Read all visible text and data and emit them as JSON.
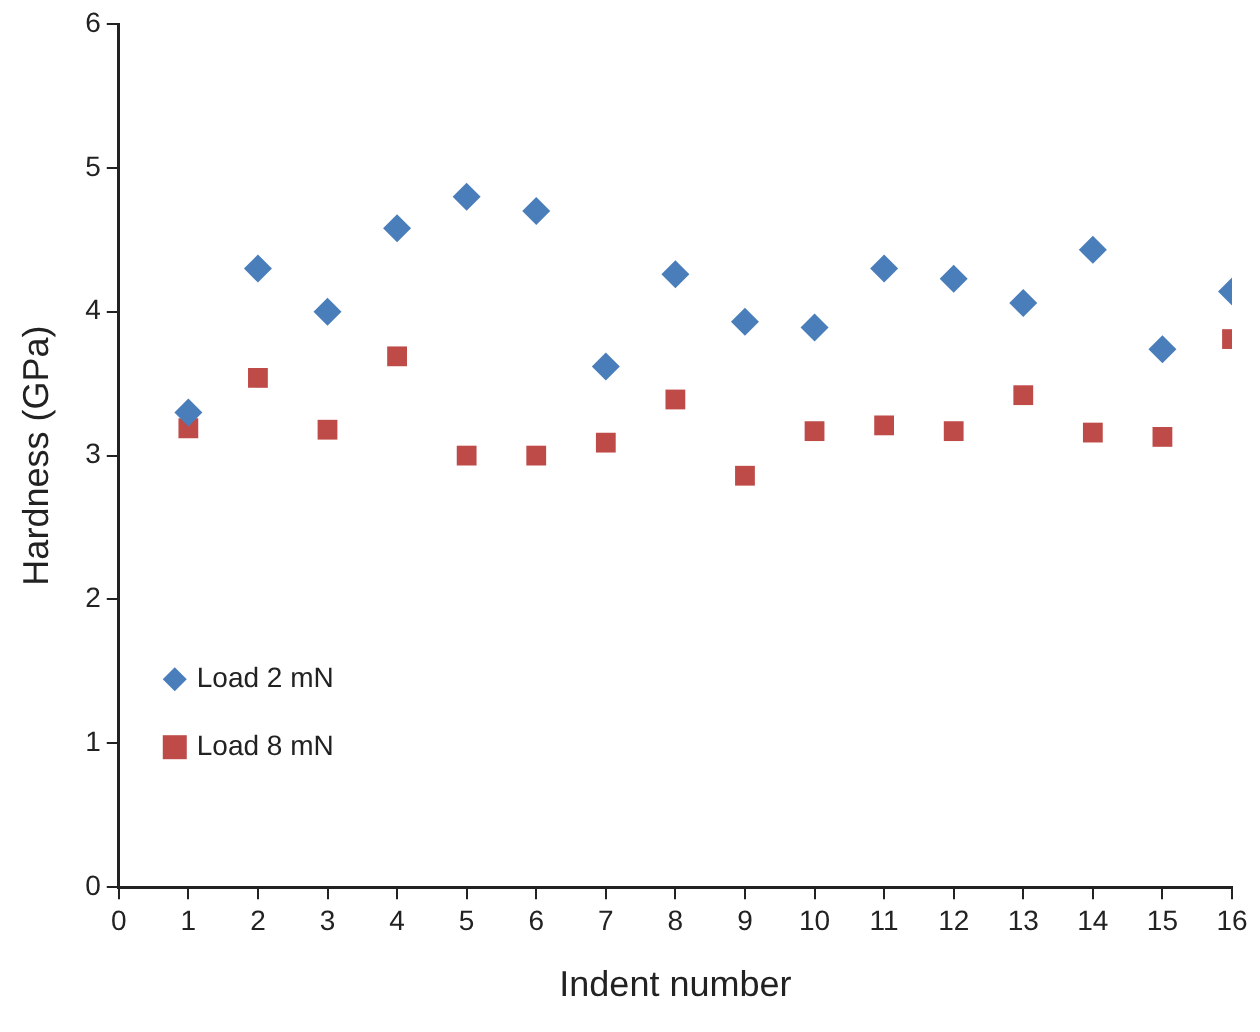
{
  "chart_data": {
    "type": "scatter",
    "xlabel": "Indent number",
    "ylabel": "Hardness (GPa)",
    "x": [
      1,
      2,
      3,
      4,
      5,
      6,
      7,
      8,
      9,
      10,
      11,
      12,
      13,
      14,
      15,
      16
    ],
    "series": [
      {
        "name": "Load 2 mN",
        "color": "#4a7ebb",
        "marker": "diamond",
        "values": [
          3.3,
          4.3,
          4.0,
          4.58,
          4.8,
          4.7,
          3.62,
          4.26,
          3.93,
          3.89,
          4.3,
          4.23,
          4.06,
          4.43,
          3.74,
          4.14
        ]
      },
      {
        "name": "Load 8 mN",
        "color": "#be4b48",
        "marker": "square",
        "values": [
          3.19,
          3.54,
          3.18,
          3.69,
          3.0,
          3.0,
          3.09,
          3.39,
          2.86,
          3.17,
          3.21,
          3.17,
          3.42,
          3.16,
          3.13,
          3.81
        ]
      }
    ],
    "xlim": [
      0,
      16
    ],
    "xticks": [
      0,
      1,
      2,
      3,
      4,
      5,
      6,
      7,
      8,
      9,
      10,
      11,
      12,
      13,
      14,
      15,
      16
    ],
    "ylim": [
      0,
      6
    ],
    "yticks": [
      0,
      1,
      2,
      3,
      4,
      5,
      6
    ],
    "grid": false,
    "legend": "bottom left"
  }
}
